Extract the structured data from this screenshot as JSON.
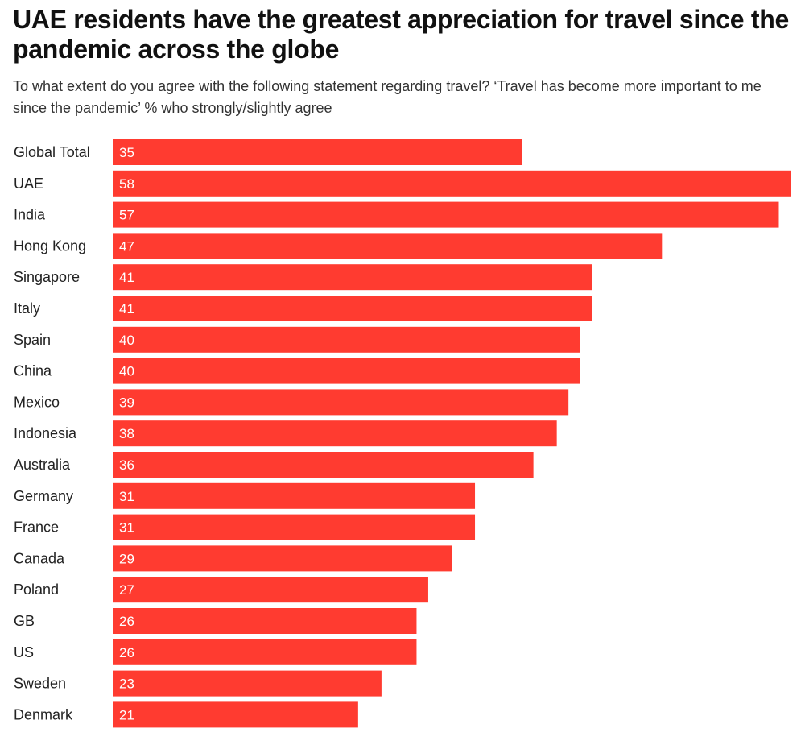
{
  "header": {
    "title": "UAE residents have the greatest appreciation for travel since the pandemic across the globe",
    "subtitle": "To what extent do you agree with the following statement regarding travel? ‘Travel has become more important to me since the pandemic’ % who strongly/slightly agree"
  },
  "chart_data": {
    "type": "bar",
    "orientation": "horizontal",
    "title": "UAE residents have the greatest appreciation for travel since the pandemic across the globe",
    "subtitle": "To what extent do you agree with the following statement regarding travel? ‘Travel has become more important to me since the pandemic’ % who strongly/slightly agree",
    "categories": [
      "Global Total",
      "UAE",
      "India",
      "Hong Kong",
      "Singapore",
      "Italy",
      "Spain",
      "China",
      "Mexico",
      "Indonesia",
      "Australia",
      "Germany",
      "France",
      "Canada",
      "Poland",
      "GB",
      "US",
      "Sweden",
      "Denmark"
    ],
    "values": [
      35,
      58,
      57,
      47,
      41,
      41,
      40,
      40,
      39,
      38,
      36,
      31,
      31,
      29,
      27,
      26,
      26,
      23,
      21
    ],
    "xlim": [
      0,
      58
    ],
    "bar_color": "#ff3b30",
    "label_color": "#ffffff",
    "grid": false,
    "legend": "none",
    "data_labels": "inside-left"
  }
}
